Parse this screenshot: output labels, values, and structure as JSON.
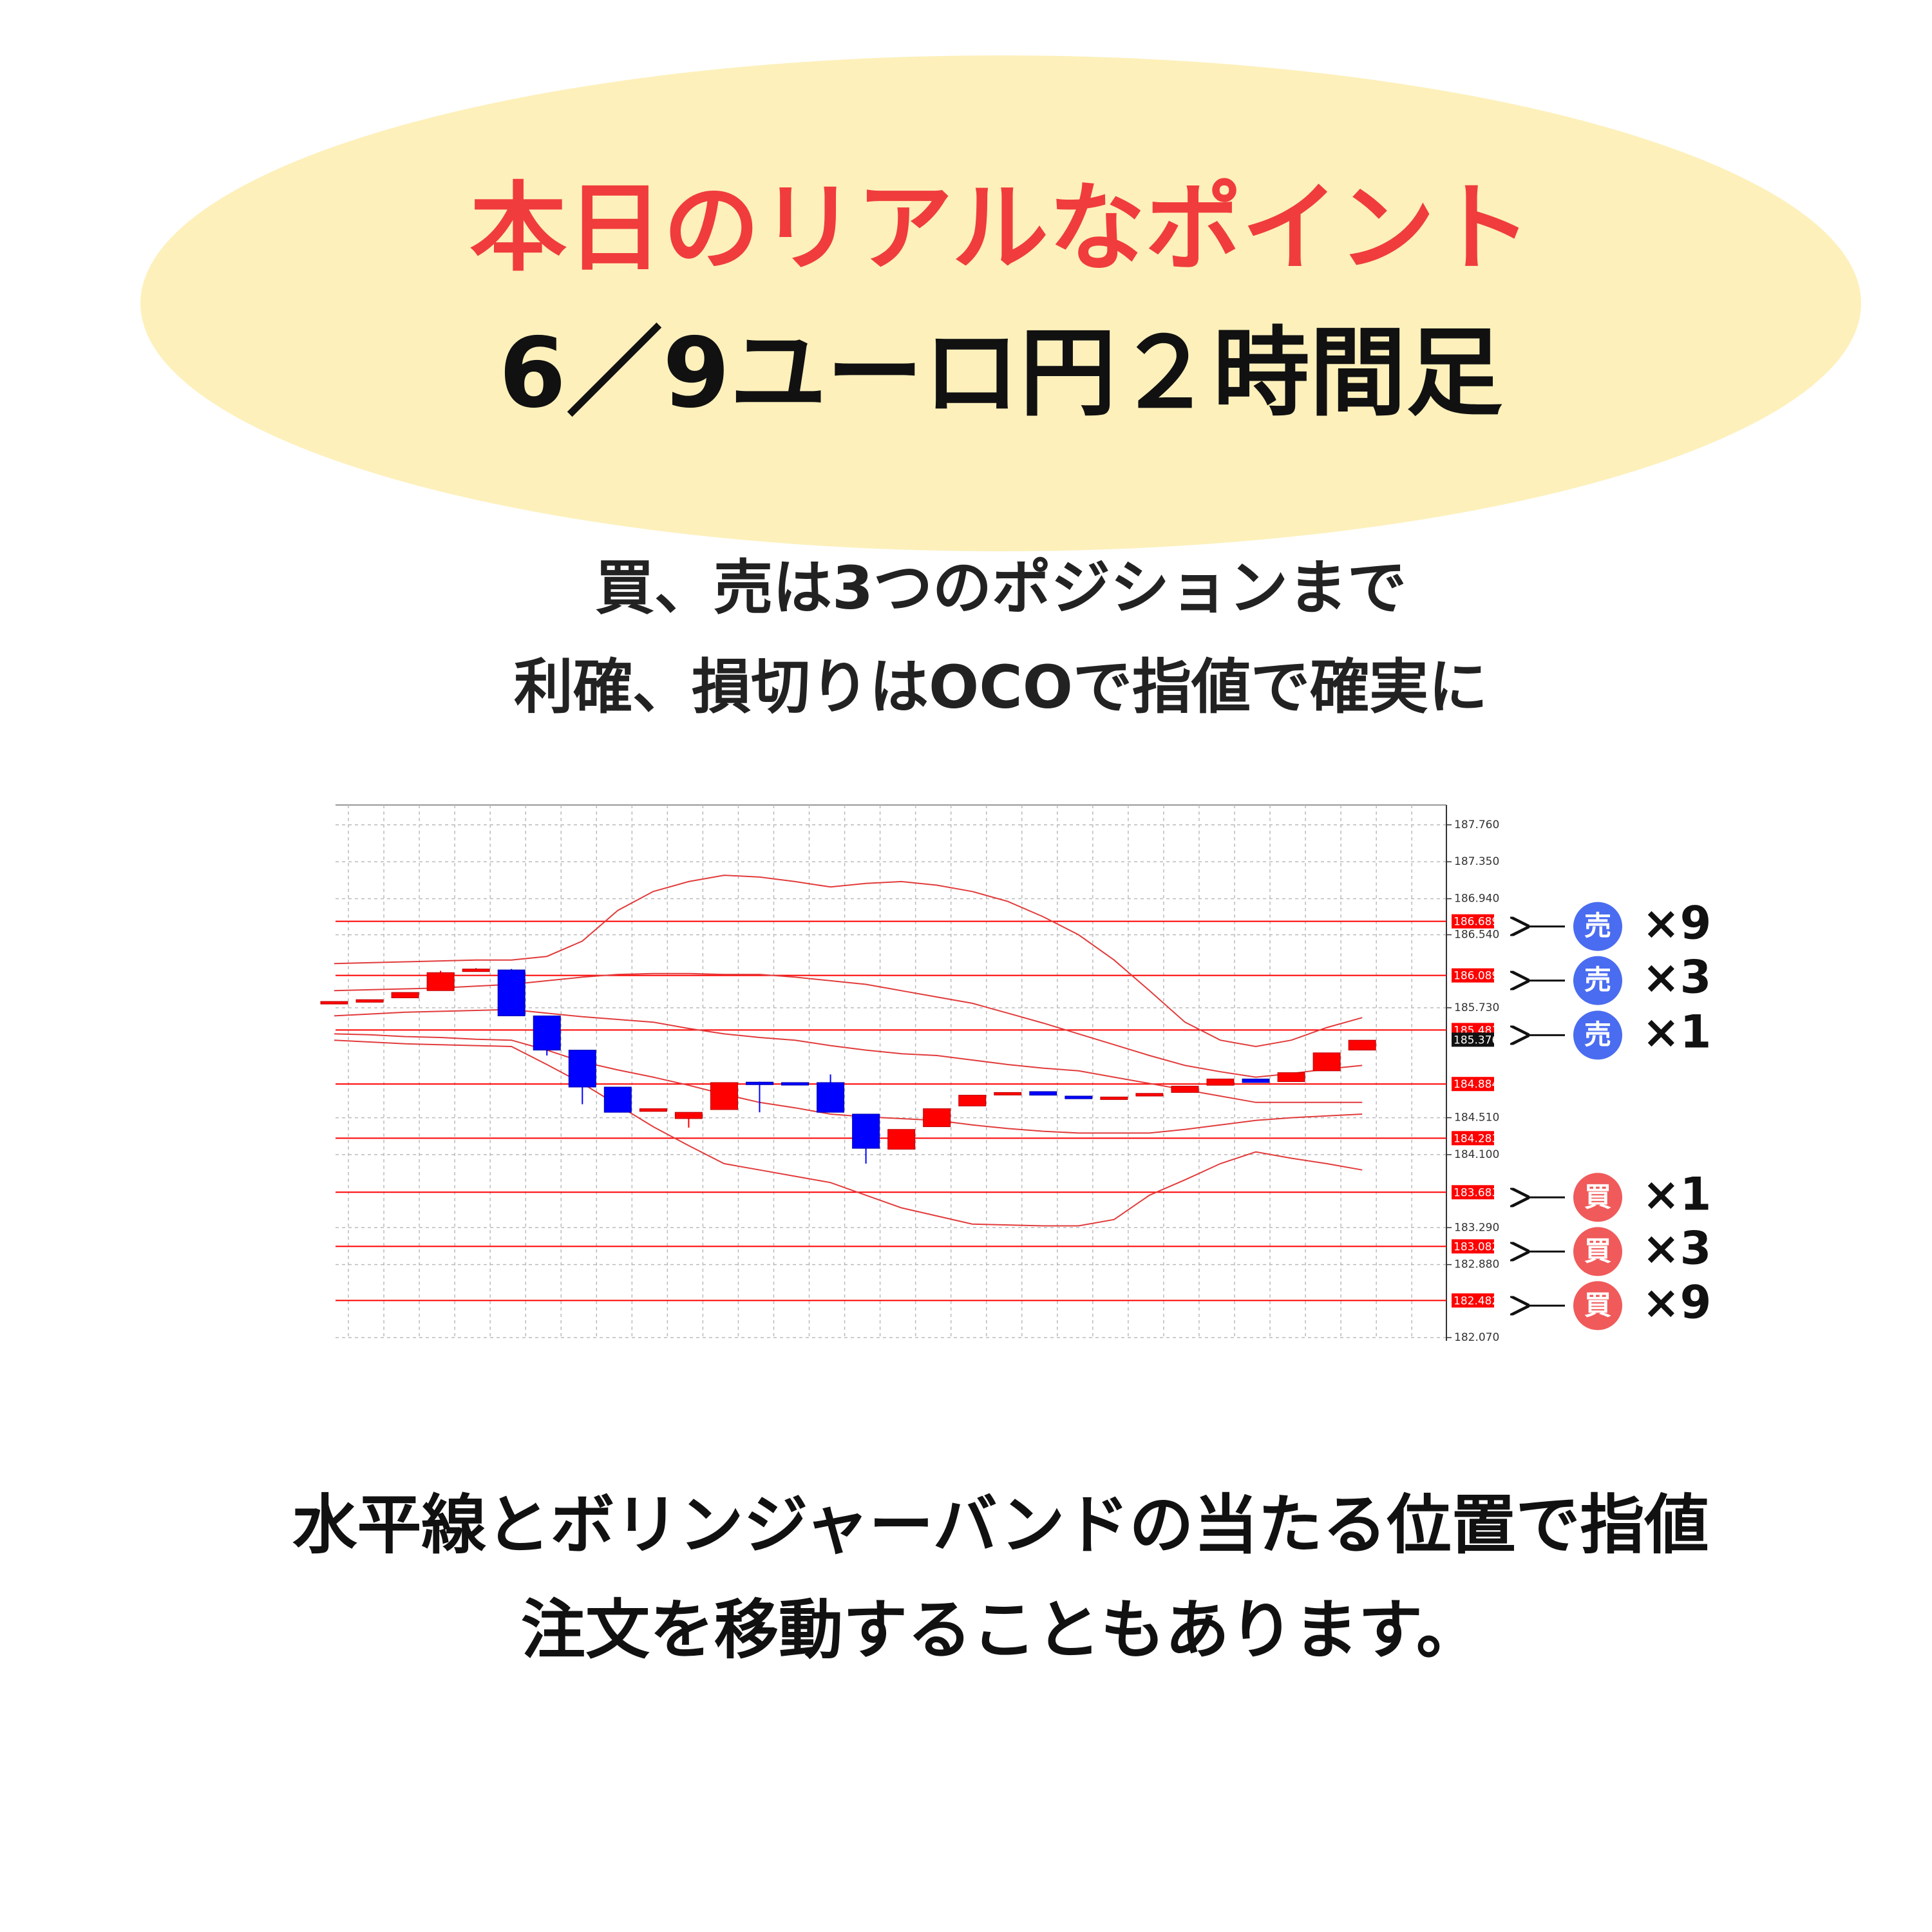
{
  "header": {
    "title": "本日のリアルなポイント",
    "subtitle": "6／9ユーロ円２時間足"
  },
  "notes": [
    "買、売は3つのポジションまで",
    "利確、損切りはOCOで指値で確実に"
  ],
  "chart_data": {
    "type": "candlestick",
    "categories": [
      null,
      null,
      null,
      null,
      null,
      null,
      null,
      null,
      null,
      null,
      null,
      null,
      null,
      null,
      null,
      null,
      null,
      null,
      null,
      null,
      null,
      null,
      null,
      null,
      null,
      null,
      null,
      null,
      null,
      null
    ],
    "open": [
      185.78,
      185.81,
      185.84,
      185.92,
      186.15,
      186.15,
      185.64,
      185.26,
      184.85,
      184.58,
      184.5,
      184.6,
      184.905,
      184.9,
      184.9,
      184.55,
      184.16,
      184.41,
      184.64,
      184.78,
      184.8,
      184.75,
      184.72,
      184.75,
      184.79,
      184.87,
      184.94,
      184.91,
      185.03,
      185.26
    ],
    "high": [
      185.8,
      185.82,
      185.9,
      186.14,
      186.17,
      186.16,
      185.64,
      185.26,
      184.85,
      184.61,
      184.57,
      184.9,
      184.91,
      184.9,
      184.99,
      184.55,
      184.38,
      184.61,
      184.76,
      184.79,
      184.8,
      184.75,
      184.74,
      184.78,
      184.86,
      184.94,
      184.94,
      185.01,
      185.23,
      185.37
    ],
    "low": [
      185.78,
      185.81,
      185.84,
      185.92,
      186.15,
      185.64,
      185.2,
      184.66,
      184.57,
      184.58,
      184.4,
      184.6,
      184.57,
      184.89,
      184.57,
      184.0,
      184.16,
      184.41,
      184.64,
      184.78,
      184.76,
      184.72,
      184.72,
      184.75,
      184.79,
      184.87,
      184.9,
      184.91,
      185.03,
      185.26
    ],
    "close": [
      185.8,
      185.82,
      185.9,
      186.12,
      186.16,
      185.64,
      185.26,
      184.85,
      184.57,
      184.61,
      184.57,
      184.9,
      184.89,
      184.89,
      184.57,
      184.17,
      184.38,
      184.61,
      184.76,
      184.79,
      184.76,
      184.72,
      184.74,
      184.78,
      184.86,
      184.94,
      184.9,
      185.01,
      185.23,
      185.37
    ],
    "up_color": "#ff0000",
    "down_color": "#0000ff",
    "bands": [
      {
        "color": "#e23b3b",
        "values": [
          186.22,
          186.23,
          186.24,
          186.25,
          186.26,
          186.26,
          186.3,
          186.47,
          186.81,
          187.02,
          187.13,
          187.2,
          187.18,
          187.13,
          187.07,
          187.11,
          187.13,
          187.09,
          187.02,
          186.91,
          186.74,
          186.54,
          186.26,
          185.92,
          185.57,
          185.37,
          185.3,
          185.37,
          185.51,
          185.62
        ]
      },
      {
        "color": "#e23b3b",
        "values": [
          185.92,
          185.93,
          185.94,
          185.95,
          185.97,
          185.99,
          186.03,
          186.07,
          186.1,
          186.11,
          186.11,
          186.1,
          186.1,
          186.07,
          186.03,
          185.99,
          185.92,
          185.85,
          185.78,
          185.67,
          185.56,
          185.44,
          185.32,
          185.2,
          185.09,
          185.02,
          184.96,
          185.0,
          185.05,
          185.09
        ]
      },
      {
        "color": "#e23b3b",
        "values": [
          185.64,
          185.66,
          185.68,
          185.69,
          185.7,
          185.71,
          185.67,
          185.63,
          185.6,
          185.57,
          185.5,
          185.44,
          185.4,
          185.37,
          185.31,
          185.26,
          185.22,
          185.2,
          185.15,
          185.1,
          185.06,
          185.03,
          184.96,
          184.89,
          184.82,
          184.75,
          184.68,
          184.68,
          184.68,
          184.68
        ]
      },
      {
        "color": "#e23b3b",
        "values": [
          185.44,
          185.43,
          185.41,
          185.4,
          185.38,
          185.37,
          185.26,
          185.13,
          185.04,
          184.96,
          184.87,
          184.77,
          184.68,
          184.62,
          184.55,
          184.52,
          184.5,
          184.48,
          184.43,
          184.39,
          184.36,
          184.34,
          184.34,
          184.34,
          184.38,
          184.43,
          184.48,
          184.51,
          184.53,
          184.55
        ]
      },
      {
        "color": "#e23b3b",
        "values": [
          185.37,
          185.35,
          185.33,
          185.32,
          185.31,
          185.3,
          185.1,
          184.89,
          184.65,
          184.41,
          184.2,
          184.0,
          183.93,
          183.86,
          183.79,
          183.65,
          183.51,
          183.42,
          183.33,
          183.32,
          183.31,
          183.31,
          183.38,
          183.65,
          183.82,
          184.0,
          184.13,
          184.06,
          184.0,
          183.93
        ]
      }
    ],
    "levels": [
      186.689,
      186.089,
      185.483,
      184.884,
      184.283,
      183.683,
      183.082,
      182.482
    ],
    "level_color": "#ff0000",
    "last_price": 185.376,
    "ylim": [
      182.07,
      187.98
    ],
    "yticks": [
      {
        "value": 187.76,
        "label": "187.760"
      },
      {
        "value": 187.35,
        "label": "187.350"
      },
      {
        "value": 186.94,
        "label": "186.940"
      },
      {
        "value": 186.54,
        "label": "186.540"
      },
      {
        "value": 185.73,
        "label": "185.730"
      },
      {
        "value": 184.51,
        "label": "184.510"
      },
      {
        "value": 184.1,
        "label": "184.100"
      },
      {
        "value": 183.29,
        "label": "183.290"
      },
      {
        "value": 182.88,
        "label": "182.880"
      },
      {
        "value": 182.07,
        "label": "182.070"
      }
    ],
    "grid": true,
    "annotations": [
      {
        "badge": "売",
        "count": "×9",
        "color": "#4a6cf0"
      },
      {
        "badge": "売",
        "count": "×3",
        "color": "#4a6cf0"
      },
      {
        "badge": "売",
        "count": "×1",
        "color": "#4a6cf0"
      },
      {
        "badge": "買",
        "count": "×1",
        "color": "#f05a5a"
      },
      {
        "badge": "買",
        "count": "×3",
        "color": "#f05a5a"
      },
      {
        "badge": "買",
        "count": "×9",
        "color": "#f05a5a"
      }
    ]
  },
  "footer": [
    "水平線とボリンジャーバンドの当たる位置で指値",
    "注文を移動することもあります。"
  ]
}
